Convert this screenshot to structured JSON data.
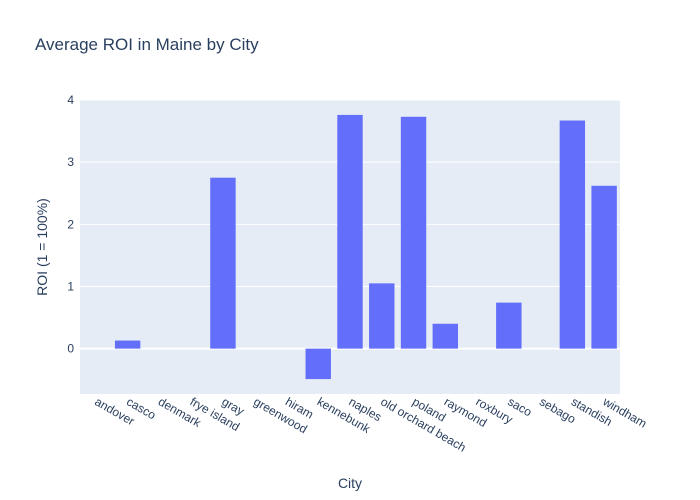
{
  "chart_data": {
    "type": "bar",
    "title": "Average ROI in Maine by City",
    "xlabel": "City",
    "ylabel": "ROI (1 = 100%)",
    "categories": [
      "andover",
      "casco",
      "denmark",
      "frye island",
      "gray",
      "greenwood",
      "hiram",
      "kennebunk",
      "naples",
      "old orchard beach",
      "poland",
      "raymond",
      "roxbury",
      "saco",
      "sebago",
      "standish",
      "windham"
    ],
    "values": [
      0,
      0.13,
      0,
      0,
      2.75,
      0,
      0,
      -0.49,
      3.76,
      1.05,
      3.73,
      0.4,
      0,
      0.74,
      0,
      3.67,
      2.62
    ],
    "ylim": [
      -0.73,
      4.0
    ],
    "yticks": [
      "0",
      "1",
      "2",
      "3",
      "4"
    ],
    "ytick_values": [
      0,
      1,
      2,
      3,
      4
    ],
    "bar_color": "#636efa",
    "plot_bg": "#e5ecf6",
    "grid": true
  }
}
